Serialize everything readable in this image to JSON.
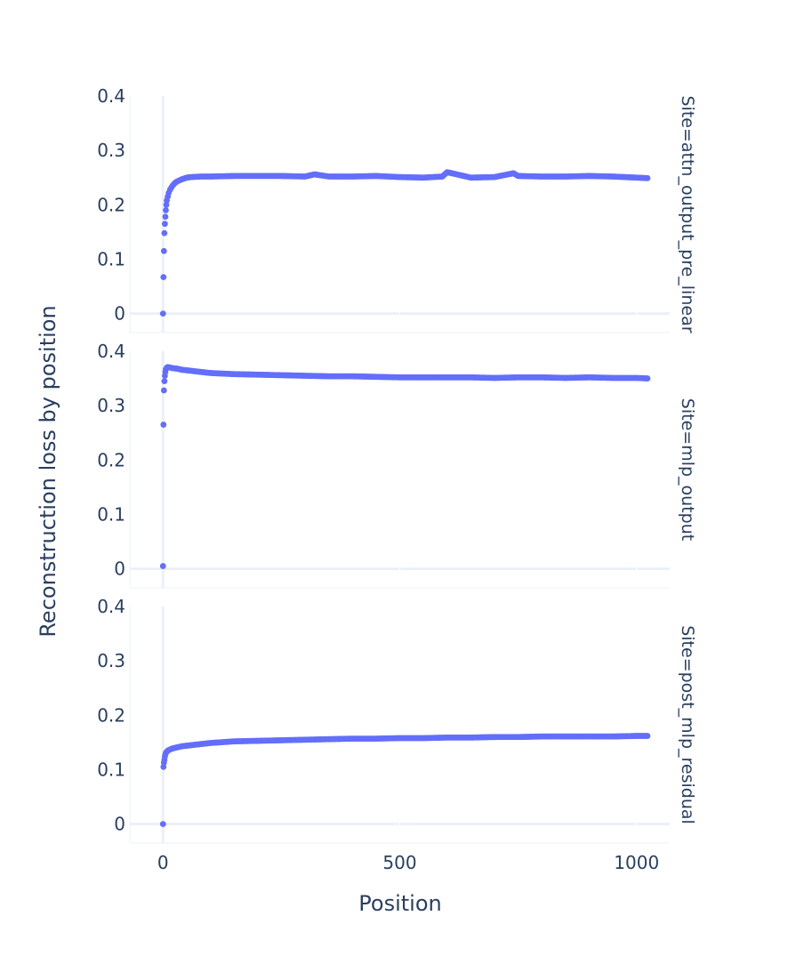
{
  "chart_data": {
    "type": "scatter",
    "xlabel": "Position",
    "ylabel": "Reconstruction loss by position",
    "xlim": [
      -70,
      1070
    ],
    "ylim": [
      -0.035,
      0.4
    ],
    "x_ticks": [
      "0",
      "500",
      "1000"
    ],
    "x_tick_values": [
      0,
      500,
      1000
    ],
    "y_ticks": [
      "0",
      "0.1",
      "0.2",
      "0.3",
      "0.4"
    ],
    "y_tick_values": [
      0,
      0.1,
      0.2,
      0.3,
      0.4
    ],
    "grid": true,
    "marker_color": "#636efa",
    "panels": [
      {
        "facet_label": "Site=attn_output_pre_linear",
        "x": [
          0,
          1,
          2,
          3,
          4,
          5,
          6,
          7,
          8,
          10,
          12,
          15,
          20,
          25,
          30,
          40,
          50,
          60,
          80,
          100,
          150,
          200,
          250,
          300,
          320,
          350,
          400,
          450,
          500,
          550,
          590,
          600,
          650,
          700,
          740,
          750,
          800,
          850,
          900,
          950,
          1000,
          1023
        ],
        "y": [
          0.0,
          0.067,
          0.115,
          0.148,
          0.165,
          0.178,
          0.19,
          0.2,
          0.208,
          0.215,
          0.222,
          0.228,
          0.235,
          0.24,
          0.243,
          0.247,
          0.25,
          0.251,
          0.252,
          0.252,
          0.253,
          0.253,
          0.253,
          0.252,
          0.256,
          0.252,
          0.252,
          0.253,
          0.251,
          0.25,
          0.252,
          0.26,
          0.25,
          0.251,
          0.258,
          0.253,
          0.252,
          0.252,
          0.253,
          0.252,
          0.25,
          0.249
        ]
      },
      {
        "facet_label": "Site=mlp_output",
        "x": [
          0,
          1,
          2,
          3,
          4,
          5,
          6,
          8,
          10,
          15,
          20,
          30,
          40,
          50,
          60,
          80,
          100,
          150,
          200,
          250,
          300,
          350,
          400,
          450,
          500,
          550,
          600,
          650,
          700,
          750,
          800,
          850,
          900,
          950,
          1000,
          1023
        ],
        "y": [
          0.005,
          0.265,
          0.328,
          0.345,
          0.355,
          0.362,
          0.367,
          0.37,
          0.371,
          0.37,
          0.369,
          0.368,
          0.366,
          0.365,
          0.364,
          0.362,
          0.36,
          0.358,
          0.357,
          0.356,
          0.355,
          0.354,
          0.354,
          0.353,
          0.352,
          0.352,
          0.352,
          0.352,
          0.351,
          0.352,
          0.352,
          0.351,
          0.352,
          0.351,
          0.351,
          0.35
        ]
      },
      {
        "facet_label": "Site=post_mlp_residual",
        "x": [
          0,
          1,
          2,
          3,
          4,
          5,
          6,
          8,
          10,
          15,
          20,
          30,
          40,
          50,
          60,
          80,
          100,
          150,
          200,
          250,
          300,
          350,
          400,
          450,
          500,
          550,
          600,
          650,
          700,
          750,
          800,
          850,
          900,
          950,
          1000,
          1023
        ],
        "y": [
          0.0,
          0.105,
          0.113,
          0.118,
          0.124,
          0.128,
          0.131,
          0.133,
          0.135,
          0.137,
          0.139,
          0.141,
          0.143,
          0.144,
          0.145,
          0.147,
          0.149,
          0.152,
          0.153,
          0.154,
          0.155,
          0.156,
          0.157,
          0.157,
          0.158,
          0.158,
          0.159,
          0.159,
          0.16,
          0.16,
          0.161,
          0.161,
          0.161,
          0.161,
          0.162,
          0.162
        ]
      }
    ]
  }
}
